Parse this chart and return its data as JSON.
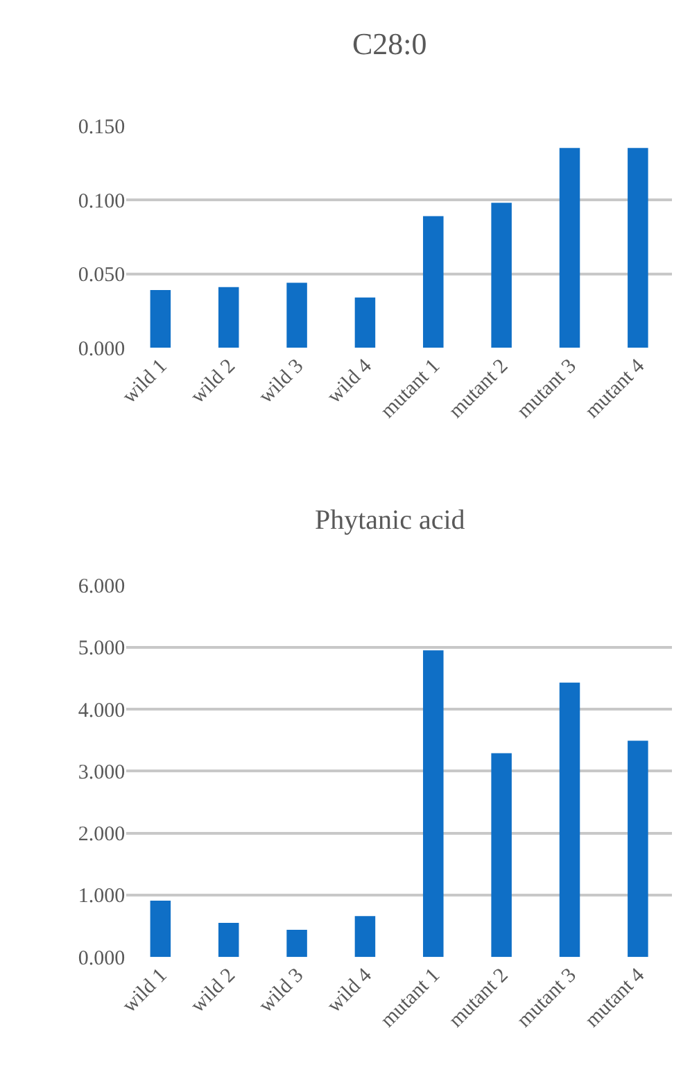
{
  "chart_data": [
    {
      "type": "bar",
      "title": "C28:0",
      "categories": [
        "wild 1",
        "wild 2",
        "wild 3",
        "wild 4",
        "mutant 1",
        "mutant 2",
        "mutant 3",
        "mutant 4"
      ],
      "values": [
        0.039,
        0.041,
        0.044,
        0.034,
        0.089,
        0.098,
        0.135,
        0.135
      ],
      "color": "#0f6fc6",
      "ylim": [
        0,
        0.15
      ],
      "yticks": [
        {
          "value": 0,
          "label": "0.000"
        },
        {
          "value": 0.05,
          "label": "0.050"
        },
        {
          "value": 0.1,
          "label": "0.100"
        },
        {
          "value": 0.15,
          "label": "0.150"
        }
      ],
      "grid": "y"
    },
    {
      "type": "bar",
      "title": "Phytanic acid",
      "categories": [
        "wild 1",
        "wild 2",
        "wild 3",
        "wild 4",
        "mutant 1",
        "mutant 2",
        "mutant 3",
        "mutant 4"
      ],
      "values": [
        0.91,
        0.55,
        0.44,
        0.66,
        4.95,
        3.29,
        4.43,
        3.49
      ],
      "color": "#0f6fc6",
      "ylim": [
        0,
        6
      ],
      "yticks": [
        {
          "value": 0,
          "label": "0.000"
        },
        {
          "value": 1,
          "label": "1.000"
        },
        {
          "value": 2,
          "label": "2.000"
        },
        {
          "value": 3,
          "label": "3.000"
        },
        {
          "value": 4,
          "label": "4.000"
        },
        {
          "value": 5,
          "label": "5.000"
        },
        {
          "value": 6,
          "label": "6.000"
        }
      ],
      "grid": "y"
    }
  ]
}
